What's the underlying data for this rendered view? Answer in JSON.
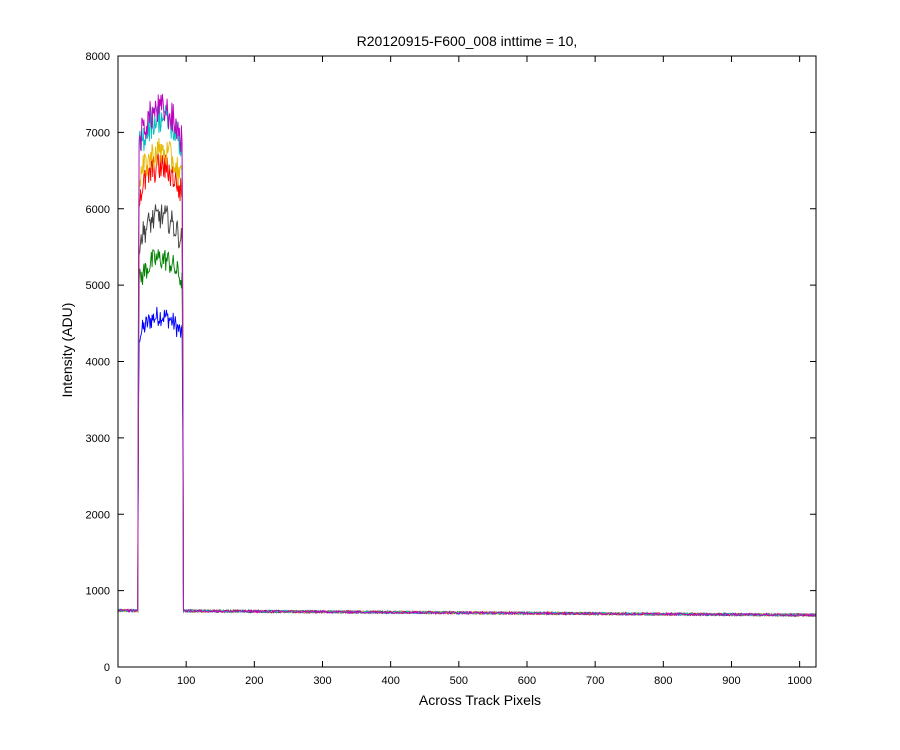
{
  "chart_data": {
    "type": "line",
    "title": "R20120915-F600_008 inttime = 10,",
    "xlabel": "Across Track Pixels",
    "ylabel": "Intensity (ADU)",
    "xlim": [
      0,
      1024
    ],
    "ylim": [
      0,
      8000
    ],
    "xticks": [
      0,
      100,
      200,
      300,
      400,
      500,
      600,
      700,
      800,
      900,
      1000
    ],
    "yticks": [
      0,
      1000,
      2000,
      3000,
      4000,
      5000,
      6000,
      7000,
      8000
    ],
    "grid": false,
    "legend": "none",
    "baseline": {
      "x_start": 0,
      "x_end": 1024,
      "y_start": 740,
      "y_end": 680
    },
    "plateau": {
      "x_rise": 30,
      "x_fall": 95
    },
    "series": [
      {
        "color": "#0000ff",
        "peak": 4600
      },
      {
        "color": "#008000",
        "peak": 5350
      },
      {
        "color": "#404040",
        "peak": 5900
      },
      {
        "color": "#ff0000",
        "peak": 6550
      },
      {
        "color": "#e6b800",
        "peak": 6750
      },
      {
        "color": "#00bfbf",
        "peak": 7200
      },
      {
        "color": "#bf00bf",
        "peak": 7300
      }
    ]
  }
}
